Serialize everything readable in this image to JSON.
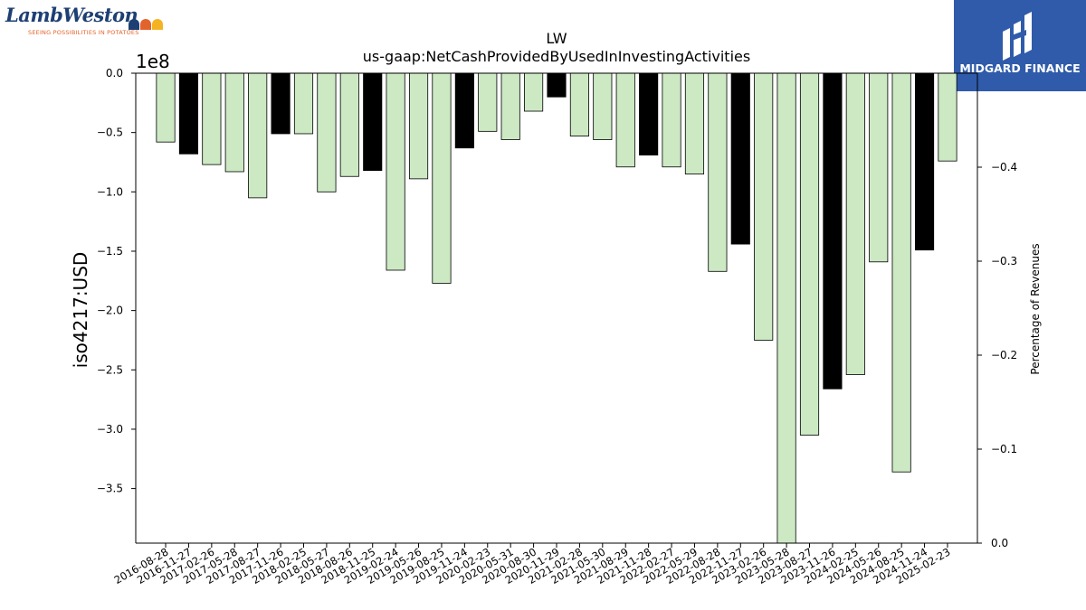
{
  "logos": {
    "left": {
      "wordmark": "LambWeston",
      "tagline": "SEEING POSSIBILITIES IN POTATOES",
      "icon": "potato-dots-icon"
    },
    "right": {
      "name": "MIDGARD FINANCE",
      "icon": "midgard-mark-icon"
    }
  },
  "colors": {
    "bar_normal": "#cce9c4",
    "bar_highlight": "#000000",
    "edge": "#000000"
  },
  "chart_data": {
    "type": "bar",
    "title": "LW",
    "subtitle": "us-gaap:NetCashProvidedByUsedInInvestingActivities",
    "ylabel": "iso4217:USD",
    "ylabel_right": "Percentage of Revenues",
    "offset_label": "1e8",
    "ylim": [
      -396000000,
      0
    ],
    "yticks": [
      0.0,
      -0.5,
      -1.0,
      -1.5,
      -2.0,
      -2.5,
      -3.0,
      -3.5
    ],
    "yticklabels": [
      "0.0",
      "−0.5",
      "−1.0",
      "−1.5",
      "−2.0",
      "−2.5",
      "−3.0",
      "−3.5"
    ],
    "ylim_right": [
      0.0,
      -0.5
    ],
    "yticks_right": [
      0.0,
      -0.1,
      -0.2,
      -0.3,
      -0.4
    ],
    "yticklabels_right": [
      "0.0",
      "−0.1",
      "−0.2",
      "−0.3",
      "−0.4"
    ],
    "categories": [
      "2016-08-28",
      "2016-11-27",
      "2017-02-26",
      "2017-05-28",
      "2017-08-27",
      "2017-11-26",
      "2018-02-25",
      "2018-05-27",
      "2018-08-26",
      "2018-11-25",
      "2019-02-24",
      "2019-05-26",
      "2019-08-25",
      "2019-11-24",
      "2020-02-23",
      "2020-05-31",
      "2020-08-30",
      "2020-11-29",
      "2021-02-28",
      "2021-05-30",
      "2021-08-29",
      "2021-11-28",
      "2022-02-27",
      "2022-05-29",
      "2022-08-28",
      "2022-11-27",
      "2023-02-26",
      "2023-05-28",
      "2023-08-27",
      "2023-11-26",
      "2024-02-25",
      "2024-05-26",
      "2024-08-25",
      "2024-11-24",
      "2025-02-23"
    ],
    "values": [
      -58000000,
      -68000000,
      -77000000,
      -83000000,
      -105000000,
      -51000000,
      -51000000,
      -100000000,
      -87000000,
      -82000000,
      -166000000,
      -89000000,
      -177000000,
      -63000000,
      -49000000,
      -56000000,
      -32000000,
      -20000000,
      -53000000,
      -56000000,
      -79000000,
      -69000000,
      -79000000,
      -85000000,
      -167000000,
      -144000000,
      -225000000,
      -396000000,
      -305000000,
      -266000000,
      -254000000,
      -159000000,
      -336000000,
      -149000000,
      -74000000
    ],
    "highlight": [
      false,
      true,
      false,
      false,
      false,
      true,
      false,
      false,
      false,
      true,
      false,
      false,
      false,
      true,
      false,
      false,
      false,
      true,
      false,
      false,
      false,
      true,
      false,
      false,
      false,
      true,
      false,
      false,
      false,
      true,
      false,
      false,
      false,
      true,
      false
    ],
    "grid": false,
    "legend": "none"
  }
}
